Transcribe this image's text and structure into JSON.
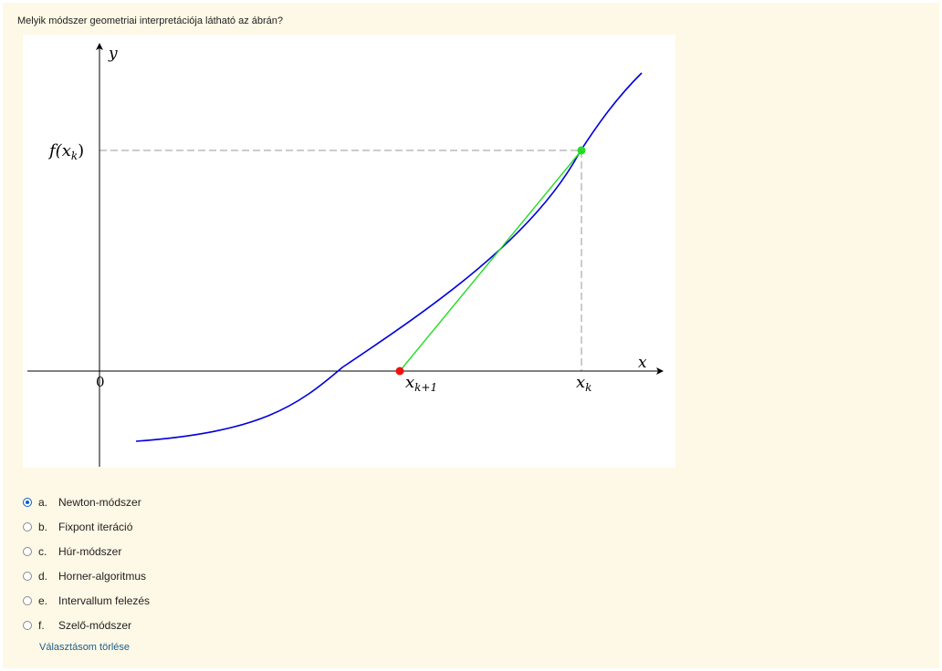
{
  "question": {
    "text": "Melyik módszer geometriai interpretációja látható az ábrán?"
  },
  "figure": {
    "y_axis_label": "y",
    "x_axis_label": "x",
    "origin_label": "0",
    "fx_label_f": "f(",
    "fx_label_x": "x",
    "fx_label_sub": "k",
    "fx_label_close": ")",
    "xk1_label_x": "x",
    "xk1_label_sub": "k+1",
    "xk_label_x": "x",
    "xk_label_sub": "k",
    "colors": {
      "curve": "#0000dd",
      "tangent": "#22dd22",
      "point_current": "#22dd22",
      "point_next": "#ee1111",
      "dashed": "#999999",
      "axis": "#000000"
    }
  },
  "options": [
    {
      "letter": "a.",
      "text": "Newton-módszer",
      "checked": true
    },
    {
      "letter": "b.",
      "text": "Fixpont iteráció",
      "checked": false
    },
    {
      "letter": "c.",
      "text": "Húr-módszer",
      "checked": false
    },
    {
      "letter": "d.",
      "text": "Horner-algoritmus",
      "checked": false
    },
    {
      "letter": "e.",
      "text": "Intervallum felezés",
      "checked": false
    },
    {
      "letter": "f.",
      "text": "Szelő-módszer",
      "checked": false
    }
  ],
  "clear_link": "Választásom törlése"
}
